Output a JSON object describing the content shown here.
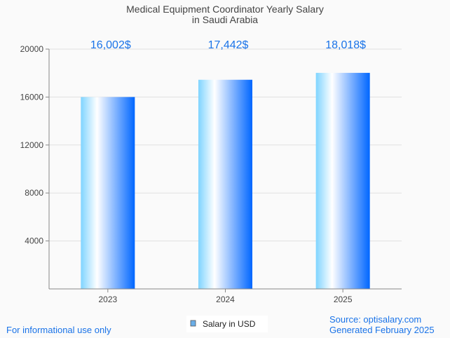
{
  "chart_data": {
    "type": "bar",
    "title": [
      "Medical Equipment Coordinator Yearly Salary",
      "in Saudi Arabia"
    ],
    "categories": [
      "2023",
      "2024",
      "2025"
    ],
    "values": [
      16002,
      17442,
      18018
    ],
    "data_labels": [
      "16,002$",
      "17,442$",
      "18,018$"
    ],
    "xlabel": "",
    "ylabel": "",
    "ylim": [
      0,
      20000
    ],
    "yticks": [
      4000,
      8000,
      12000,
      16000,
      20000
    ],
    "ytick_labels": [
      "4000",
      "8000",
      "12000",
      "16000",
      "20000"
    ],
    "grid": true,
    "legend": {
      "label": "Salary in USD",
      "placement": "bottom-center"
    }
  },
  "footer": {
    "disclaimer": "For informational use only",
    "source": "Source: optisalary.com",
    "generated": "Generated February 2025"
  },
  "colors": {
    "label": "#1a73e8",
    "bar_dark": "#0066ff",
    "bar_light": "#7fd4ff",
    "legend_swatch": "#6aaee8"
  }
}
